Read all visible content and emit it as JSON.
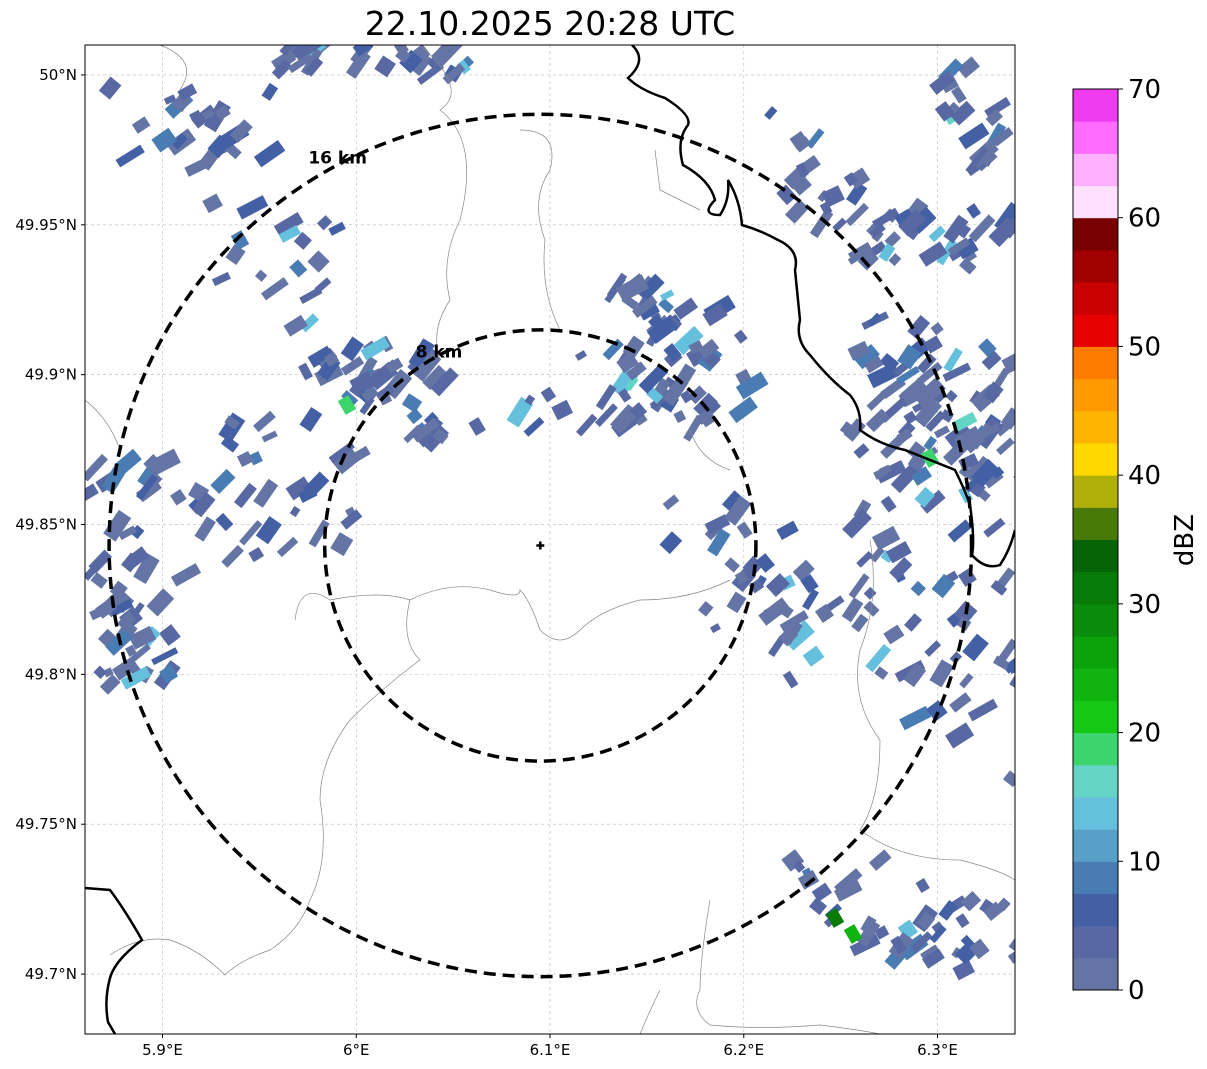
{
  "title": "22.10.2025 20:28 UTC",
  "map": {
    "lat_ticks": [
      "50°N",
      "49.95°N",
      "49.9°N",
      "49.85°N",
      "49.8°N",
      "49.75°N",
      "49.7°N"
    ],
    "lat_values": [
      50.0,
      49.95,
      49.9,
      49.85,
      49.8,
      49.75,
      49.7
    ],
    "lon_ticks": [
      "5.9°E",
      "6°E",
      "6.1°E",
      "6.2°E",
      "6.3°E"
    ],
    "lon_values": [
      5.9,
      6.0,
      6.1,
      6.2,
      6.3
    ],
    "lon_range": [
      5.86,
      6.34
    ],
    "lat_range": [
      49.68,
      50.01
    ],
    "radar_site": {
      "lon": 6.095,
      "lat": 49.843
    },
    "rings": [
      {
        "label": "16 km",
        "radius_km": 16
      },
      {
        "label": "8 km",
        "radius_km": 8
      }
    ]
  },
  "colorbar": {
    "label": "dBZ",
    "ticks": [
      "0",
      "10",
      "20",
      "30",
      "40",
      "50",
      "60",
      "70"
    ],
    "range": [
      0,
      70
    ],
    "step": 2.5,
    "colors": [
      "#6474a4",
      "#5868a2",
      "#4460a4",
      "#4a7cb4",
      "#58a0c8",
      "#64c0dc",
      "#64d4c4",
      "#3cd46c",
      "#14c814",
      "#10b410",
      "#0ca20c",
      "#0a8c0a",
      "#087a08",
      "#066406",
      "#487a0a",
      "#b0b00a",
      "#ffd800",
      "#ffb400",
      "#ff9a00",
      "#ff7c00",
      "#e60000",
      "#c80000",
      "#a00000",
      "#780000",
      "#ffe0ff",
      "#ffb0ff",
      "#ff6cff",
      "#f03cf0"
    ]
  }
}
